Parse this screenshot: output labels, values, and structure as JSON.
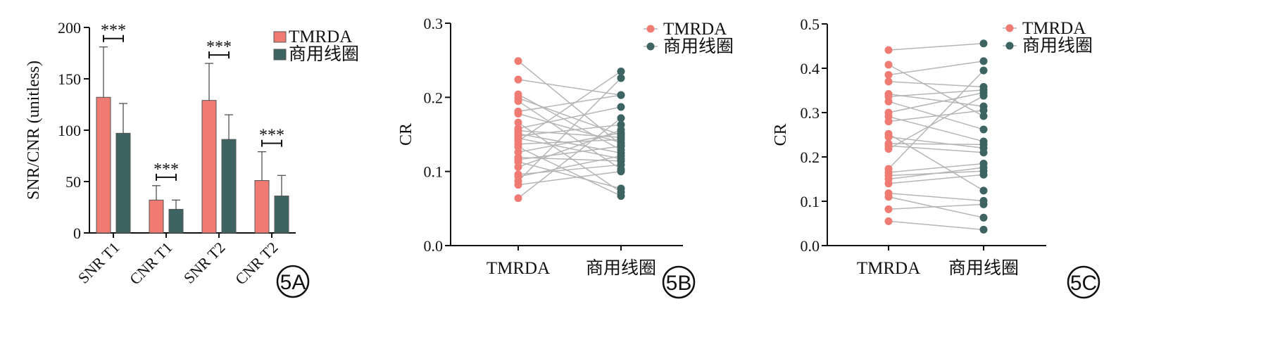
{
  "colors": {
    "tmrda": "#ef7b72",
    "commercial": "#3d6462",
    "pair_line": "#b5b5b5"
  },
  "chart_data": [
    {
      "panel": "5A",
      "type": "bar",
      "ylabel": "SNR/CNR (unitless)",
      "ylim": [
        0,
        200
      ],
      "yticks": [
        0,
        50,
        100,
        150,
        200
      ],
      "categories": [
        "SNR T1",
        "CNR T1",
        "SNR T2",
        "CNR T2"
      ],
      "series": [
        {
          "name": "TMRDA",
          "values": [
            132,
            32,
            129,
            51
          ],
          "errors": [
            49,
            14,
            36,
            28
          ]
        },
        {
          "name": "商用线圈",
          "values": [
            97,
            23,
            91,
            36
          ],
          "errors": [
            29,
            9,
            24,
            20
          ]
        }
      ],
      "annotations": [
        "***",
        "***",
        "***",
        "***"
      ],
      "legend": "top-right"
    },
    {
      "panel": "5B",
      "type": "scatter",
      "ylabel": "CR",
      "ylim": [
        0,
        0.3
      ],
      "yticks": [
        "0.0",
        "0.1",
        "0.2",
        "0.3"
      ],
      "categories": [
        "TMRDA",
        "商用线圈"
      ],
      "series": [
        {
          "name": "TMRDA",
          "values": [
            0.249,
            0.224,
            0.204,
            0.199,
            0.195,
            0.181,
            0.178,
            0.166,
            0.158,
            0.155,
            0.151,
            0.148,
            0.145,
            0.141,
            0.137,
            0.133,
            0.126,
            0.119,
            0.116,
            0.113,
            0.106,
            0.096,
            0.093,
            0.087,
            0.082,
            0.064
          ]
        },
        {
          "name": "商用线圈",
          "values": [
            0.235,
            0.226,
            0.203,
            0.203,
            0.187,
            0.172,
            0.163,
            0.156,
            0.152,
            0.149,
            0.146,
            0.143,
            0.139,
            0.136,
            0.134,
            0.129,
            0.125,
            0.121,
            0.117,
            0.114,
            0.109,
            0.103,
            0.1,
            0.077,
            0.072,
            0.067
          ]
        }
      ],
      "pairs": [
        [
          0,
          13
        ],
        [
          1,
          3
        ],
        [
          2,
          15
        ],
        [
          3,
          9
        ],
        [
          4,
          21
        ],
        [
          5,
          2
        ],
        [
          6,
          12
        ],
        [
          7,
          24
        ],
        [
          8,
          4
        ],
        [
          9,
          10
        ],
        [
          10,
          16
        ],
        [
          11,
          6
        ],
        [
          12,
          18
        ],
        [
          13,
          0
        ],
        [
          14,
          11
        ],
        [
          15,
          25
        ],
        [
          16,
          8
        ],
        [
          17,
          19
        ],
        [
          18,
          14
        ],
        [
          19,
          23
        ],
        [
          20,
          7
        ],
        [
          21,
          20
        ],
        [
          22,
          17
        ],
        [
          23,
          1
        ],
        [
          24,
          22
        ],
        [
          25,
          5
        ]
      ],
      "legend": "top-right"
    },
    {
      "panel": "5C",
      "type": "scatter",
      "ylabel": "CR",
      "ylim": [
        0,
        0.5
      ],
      "yticks": [
        "0.0",
        "0.1",
        "0.2",
        "0.3",
        "0.4",
        "0.5"
      ],
      "categories": [
        "TMRDA",
        "商用线圈"
      ],
      "series": [
        {
          "name": "TMRDA",
          "values": [
            0.441,
            0.408,
            0.385,
            0.37,
            0.342,
            0.336,
            0.325,
            0.3,
            0.291,
            0.28,
            0.252,
            0.245,
            0.23,
            0.225,
            0.218,
            0.173,
            0.165,
            0.158,
            0.15,
            0.14,
            0.118,
            0.11,
            0.082,
            0.055
          ]
        },
        {
          "name": "商用线圈",
          "values": [
            0.456,
            0.416,
            0.395,
            0.358,
            0.351,
            0.345,
            0.338,
            0.314,
            0.305,
            0.292,
            0.262,
            0.235,
            0.228,
            0.22,
            0.21,
            0.185,
            0.176,
            0.168,
            0.16,
            0.124,
            0.101,
            0.093,
            0.063,
            0.036
          ]
        }
      ],
      "pairs": [
        [
          0,
          0
        ],
        [
          1,
          9
        ],
        [
          2,
          1
        ],
        [
          3,
          3
        ],
        [
          4,
          7
        ],
        [
          5,
          4
        ],
        [
          6,
          10
        ],
        [
          7,
          5
        ],
        [
          8,
          11
        ],
        [
          9,
          8
        ],
        [
          10,
          19
        ],
        [
          11,
          13
        ],
        [
          12,
          12
        ],
        [
          13,
          14
        ],
        [
          14,
          6
        ],
        [
          15,
          2
        ],
        [
          16,
          15
        ],
        [
          17,
          17
        ],
        [
          18,
          16
        ],
        [
          19,
          18
        ],
        [
          20,
          20
        ],
        [
          21,
          22
        ],
        [
          22,
          21
        ],
        [
          23,
          23
        ]
      ],
      "legend": "top-right"
    }
  ]
}
